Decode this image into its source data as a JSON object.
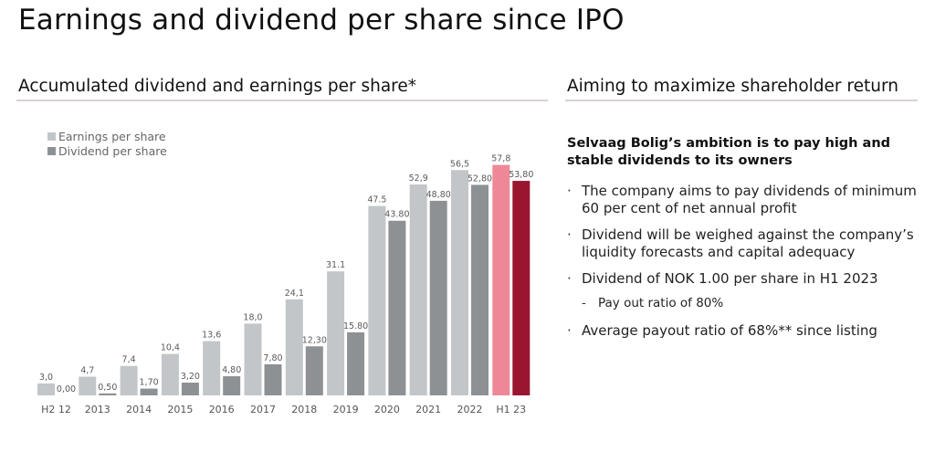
{
  "page": {
    "title": "Earnings and dividend per share since IPO"
  },
  "left_section": {
    "title": "Accumulated dividend and earnings per share*"
  },
  "right_section": {
    "title": "Aiming to maximize shareholder return",
    "lead": "Selvaag Bolig’s ambition is to pay high and stable dividends to its owners",
    "bullet_symbol": "·",
    "sub_bullet_symbol": "-",
    "bullets": [
      {
        "text": "The company aims to pay dividends of minimum 60 per cent of net annual profit",
        "sub": []
      },
      {
        "text": "Dividend will be weighed against the company’s liquidity forecasts and capital adequacy",
        "sub": []
      },
      {
        "text": "Dividend of NOK 1.00 per share in H1 2023",
        "sub": [
          "Pay out ratio of 80%"
        ]
      },
      {
        "text": "Average payout ratio of 68%** since listing",
        "sub": []
      }
    ]
  },
  "chart_data": {
    "type": "bar",
    "title": "Accumulated dividend and earnings per share*",
    "xlabel": "",
    "ylabel": "",
    "ylim": [
      0,
      60
    ],
    "grid": false,
    "legend_position": "top-left",
    "categories": [
      "H2 12",
      "2013",
      "2014",
      "2015",
      "2016",
      "2017",
      "2018",
      "2019",
      "2020",
      "2021",
      "2022",
      "H1 23"
    ],
    "series": [
      {
        "name": "Earnings per share",
        "legend_label": "Earnings per share",
        "color": "#c2c6c9",
        "highlight_color": "#ee8898",
        "values": [
          3.0,
          4.7,
          7.4,
          10.4,
          13.6,
          18.0,
          24.1,
          31.1,
          47.5,
          52.9,
          56.5,
          57.8
        ],
        "labels": [
          "3,0",
          "4,7",
          "7,4",
          "10,4",
          "13,6",
          "18,0",
          "24,1",
          "31.1",
          "47.5",
          "52,9",
          "56,5",
          "57,8"
        ]
      },
      {
        "name": "Dividend per share",
        "legend_label": "Dividend per share",
        "color": "#8e9194",
        "highlight_color": "#9a1530",
        "values": [
          0.0,
          0.5,
          1.7,
          3.2,
          4.8,
          7.8,
          12.3,
          15.8,
          43.8,
          48.8,
          52.8,
          53.8
        ],
        "labels": [
          "0,00",
          "0,50",
          "1,70",
          "3,20",
          "4,80",
          "7,80",
          "12,30",
          "15.80",
          "43.80",
          "48,80",
          "52,80",
          "53,80"
        ]
      }
    ],
    "highlight_category": "H1 23"
  }
}
